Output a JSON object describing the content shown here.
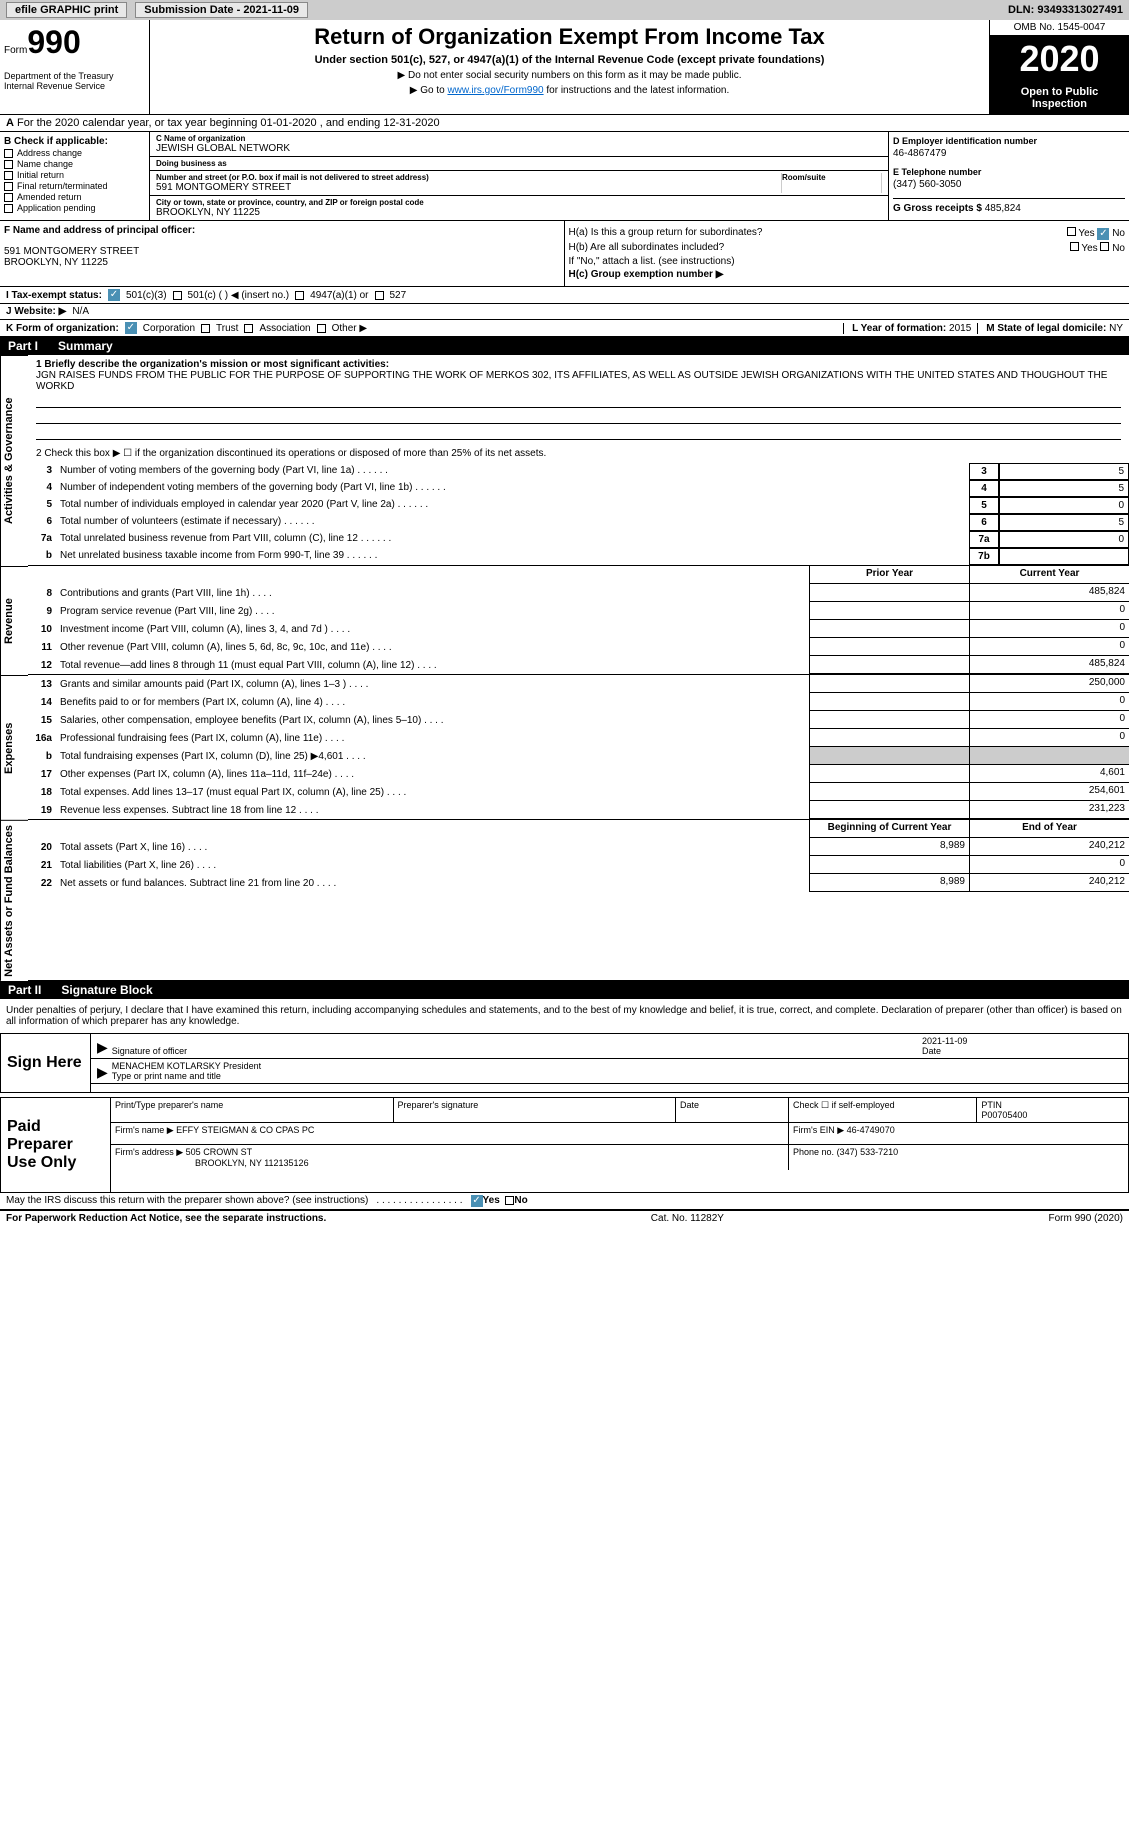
{
  "topbar": {
    "efile": "efile GRAPHIC print",
    "submission_label": "Submission Date - 2021-11-09",
    "dln": "DLN: 93493313027491"
  },
  "header": {
    "form_word": "Form",
    "form_num": "990",
    "dept": "Department of the Treasury\nInternal Revenue Service",
    "title": "Return of Organization Exempt From Income Tax",
    "subtitle": "Under section 501(c), 527, or 4947(a)(1) of the Internal Revenue Code (except private foundations)",
    "note1": "▶ Do not enter social security numbers on this form as it may be made public.",
    "note2_pre": "▶ Go to ",
    "note2_link": "www.irs.gov/Form990",
    "note2_post": " for instructions and the latest information.",
    "omb": "OMB No. 1545-0047",
    "year": "2020",
    "open": "Open to Public Inspection"
  },
  "section_a": "For the 2020 calendar year, or tax year beginning 01-01-2020   , and ending 12-31-2020",
  "box_b": {
    "label": "B Check if applicable:",
    "items": [
      "Address change",
      "Name change",
      "Initial return",
      "Final return/terminated",
      "Amended return",
      "Application pending"
    ]
  },
  "box_c": {
    "name_lbl": "C Name of organization",
    "name": "JEWISH GLOBAL NETWORK",
    "dba_lbl": "Doing business as",
    "dba": "",
    "addr_lbl": "Number and street (or P.O. box if mail is not delivered to street address)",
    "room_lbl": "Room/suite",
    "addr": "591 MONTGOMERY STREET",
    "city_lbl": "City or town, state or province, country, and ZIP or foreign postal code",
    "city": "BROOKLYN, NY  11225"
  },
  "box_d": {
    "ein_lbl": "D Employer identification number",
    "ein": "46-4867479",
    "tel_lbl": "E Telephone number",
    "tel": "(347) 560-3050",
    "gross_lbl": "G Gross receipts $",
    "gross": "485,824"
  },
  "box_f": {
    "lbl": "F Name and address of principal officer:",
    "line1": "591 MONTGOMERY STREET",
    "line2": "BROOKLYN, NY  11225"
  },
  "box_h": {
    "ha": "H(a)  Is this a group return for subordinates?",
    "hb": "H(b)  Are all subordinates included?",
    "hb_note": "If \"No,\" attach a list. (see instructions)",
    "hc": "H(c)  Group exemption number ▶",
    "yes": "Yes",
    "no": "No"
  },
  "row_i": {
    "lbl": "I  Tax-exempt status:",
    "o1": "501(c)(3)",
    "o2": "501(c) (  ) ◀ (insert no.)",
    "o3": "4947(a)(1) or",
    "o4": "527"
  },
  "row_j": {
    "lbl": "J  Website: ▶",
    "val": "N/A"
  },
  "row_k": {
    "lbl": "K Form of organization:",
    "o1": "Corporation",
    "o2": "Trust",
    "o3": "Association",
    "o4": "Other ▶"
  },
  "row_lm": {
    "l_lbl": "L Year of formation:",
    "l_val": "2015",
    "m_lbl": "M State of legal domicile:",
    "m_val": "NY"
  },
  "part1": {
    "num": "Part I",
    "title": "Summary"
  },
  "summary": {
    "governance_label": "Activities & Governance",
    "revenue_label": "Revenue",
    "expenses_label": "Expenses",
    "netassets_label": "Net Assets or Fund Balances",
    "q1_lbl": "1  Briefly describe the organization's mission or most significant activities:",
    "q1_val": "JGN RAISES FUNDS FROM THE PUBLIC FOR THE PURPOSE OF SUPPORTING THE WORK OF MERKOS 302, ITS AFFILIATES, AS WELL AS OUTSIDE JEWISH ORGANIZATIONS WITH THE UNITED STATES AND THOUGHOUT THE WORKD",
    "q2": "2  Check this box ▶ ☐ if the organization discontinued its operations or disposed of more than 25% of its net assets.",
    "rows_gov": [
      {
        "n": "3",
        "d": "Number of voting members of the governing body (Part VI, line 1a)",
        "ln": "3",
        "v": "5"
      },
      {
        "n": "4",
        "d": "Number of independent voting members of the governing body (Part VI, line 1b)",
        "ln": "4",
        "v": "5"
      },
      {
        "n": "5",
        "d": "Total number of individuals employed in calendar year 2020 (Part V, line 2a)",
        "ln": "5",
        "v": "0"
      },
      {
        "n": "6",
        "d": "Total number of volunteers (estimate if necessary)",
        "ln": "6",
        "v": "5"
      },
      {
        "n": "7a",
        "d": "Total unrelated business revenue from Part VIII, column (C), line 12",
        "ln": "7a",
        "v": "0"
      },
      {
        "n": "b",
        "d": "Net unrelated business taxable income from Form 990-T, line 39",
        "ln": "7b",
        "v": ""
      }
    ],
    "col_hdr_prior": "Prior Year",
    "col_hdr_current": "Current Year",
    "col_hdr_begin": "Beginning of Current Year",
    "col_hdr_end": "End of Year",
    "rows_rev": [
      {
        "n": "8",
        "d": "Contributions and grants (Part VIII, line 1h)",
        "p": "",
        "c": "485,824"
      },
      {
        "n": "9",
        "d": "Program service revenue (Part VIII, line 2g)",
        "p": "",
        "c": "0"
      },
      {
        "n": "10",
        "d": "Investment income (Part VIII, column (A), lines 3, 4, and 7d )",
        "p": "",
        "c": "0"
      },
      {
        "n": "11",
        "d": "Other revenue (Part VIII, column (A), lines 5, 6d, 8c, 9c, 10c, and 11e)",
        "p": "",
        "c": "0"
      },
      {
        "n": "12",
        "d": "Total revenue—add lines 8 through 11 (must equal Part VIII, column (A), line 12)",
        "p": "",
        "c": "485,824"
      }
    ],
    "rows_exp": [
      {
        "n": "13",
        "d": "Grants and similar amounts paid (Part IX, column (A), lines 1–3 )",
        "p": "",
        "c": "250,000"
      },
      {
        "n": "14",
        "d": "Benefits paid to or for members (Part IX, column (A), line 4)",
        "p": "",
        "c": "0"
      },
      {
        "n": "15",
        "d": "Salaries, other compensation, employee benefits (Part IX, column (A), lines 5–10)",
        "p": "",
        "c": "0"
      },
      {
        "n": "16a",
        "d": "Professional fundraising fees (Part IX, column (A), line 11e)",
        "p": "",
        "c": "0"
      },
      {
        "n": "b",
        "d": "Total fundraising expenses (Part IX, column (D), line 25) ▶4,601",
        "p": "shaded",
        "c": "shaded"
      },
      {
        "n": "17",
        "d": "Other expenses (Part IX, column (A), lines 11a–11d, 11f–24e)",
        "p": "",
        "c": "4,601"
      },
      {
        "n": "18",
        "d": "Total expenses. Add lines 13–17 (must equal Part IX, column (A), line 25)",
        "p": "",
        "c": "254,601"
      },
      {
        "n": "19",
        "d": "Revenue less expenses. Subtract line 18 from line 12",
        "p": "",
        "c": "231,223"
      }
    ],
    "rows_net": [
      {
        "n": "20",
        "d": "Total assets (Part X, line 16)",
        "p": "8,989",
        "c": "240,212"
      },
      {
        "n": "21",
        "d": "Total liabilities (Part X, line 26)",
        "p": "",
        "c": "0"
      },
      {
        "n": "22",
        "d": "Net assets or fund balances. Subtract line 21 from line 20",
        "p": "8,989",
        "c": "240,212"
      }
    ]
  },
  "part2": {
    "num": "Part II",
    "title": "Signature Block"
  },
  "penalties": "Under penalties of perjury, I declare that I have examined this return, including accompanying schedules and statements, and to the best of my knowledge and belief, it is true, correct, and complete. Declaration of preparer (other than officer) is based on all information of which preparer has any knowledge.",
  "sign": {
    "label": "Sign Here",
    "sig_lbl": "Signature of officer",
    "date_lbl": "Date",
    "date_val": "2021-11-09",
    "name_val": "MENACHEM KOTLARSKY President",
    "name_lbl": "Type or print name and title"
  },
  "preparer": {
    "label": "Paid Preparer Use Only",
    "h1": "Print/Type preparer's name",
    "h2": "Preparer's signature",
    "h3": "Date",
    "h4_a": "Check ☐ if self-employed",
    "h4_b": "PTIN",
    "ptin": "P00705400",
    "firm_name_lbl": "Firm's name    ▶",
    "firm_name": "EFFY STEIGMAN & CO CPAS PC",
    "firm_ein_lbl": "Firm's EIN ▶",
    "firm_ein": "46-4749070",
    "firm_addr_lbl": "Firm's address ▶",
    "firm_addr": "505 CROWN ST",
    "firm_city": "BROOKLYN, NY  112135126",
    "phone_lbl": "Phone no.",
    "phone": "(347) 533-7210"
  },
  "discuss": {
    "q": "May the IRS discuss this return with the preparer shown above? (see instructions)",
    "yes": "Yes",
    "no": "No"
  },
  "footer": {
    "left": "For Paperwork Reduction Act Notice, see the separate instructions.",
    "mid": "Cat. No. 11282Y",
    "right": "Form 990 (2020)"
  },
  "colors": {
    "topbar_bg": "#cccccc",
    "link": "#0066cc",
    "check": "#4a90b4"
  }
}
